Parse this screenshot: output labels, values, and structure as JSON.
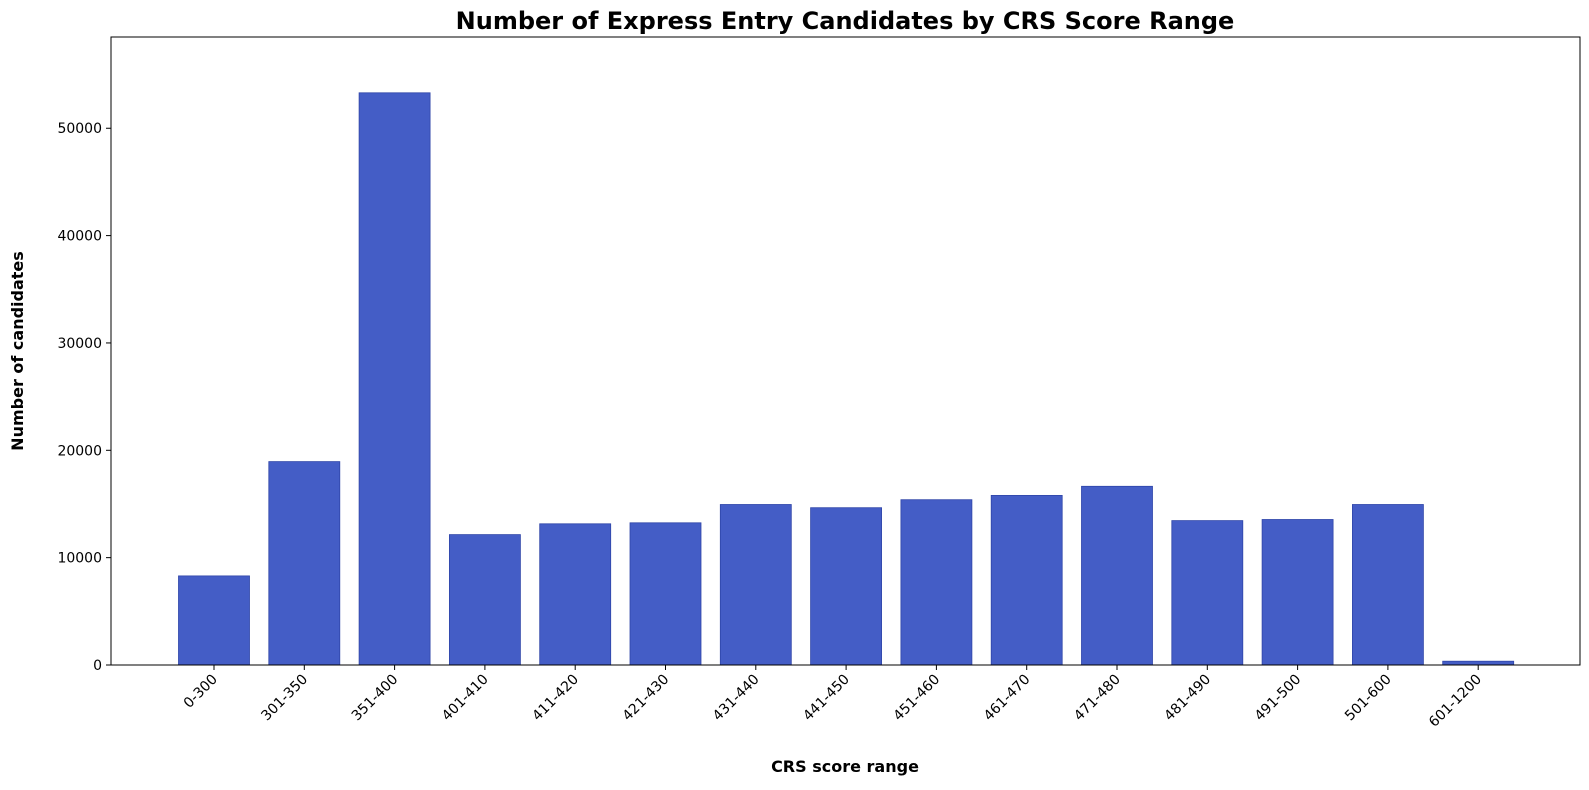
{
  "chart_data": {
    "type": "bar",
    "title": "Number of Express Entry Candidates by CRS Score Range",
    "xlabel": "CRS score range",
    "ylabel": "Number of candidates",
    "categories": [
      "0-300",
      "301-350",
      "351-400",
      "401-410",
      "411-420",
      "421-430",
      "431-440",
      "441-450",
      "451-460",
      "461-470",
      "471-480",
      "481-490",
      "491-500",
      "501-600",
      "601-1200"
    ],
    "values": [
      8300,
      18950,
      53300,
      12150,
      13150,
      13250,
      14950,
      14650,
      15400,
      15800,
      16650,
      13450,
      13550,
      14950,
      350
    ],
    "ylim": [
      0,
      58500
    ],
    "yticks": [
      0,
      10000,
      20000,
      30000,
      40000,
      50000
    ],
    "grid": false,
    "bar_color": "#445dc6",
    "bar_edge_color": "#2f45a8"
  }
}
